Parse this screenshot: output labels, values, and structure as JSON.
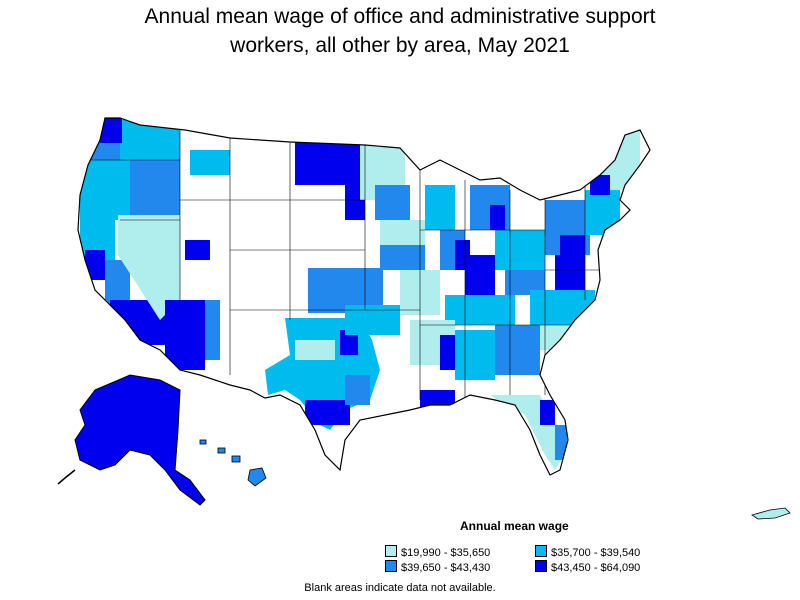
{
  "title_line1": "Annual mean wage of office and administrative support",
  "title_line2": "workers, all other by area, May 2021",
  "legend": {
    "title": "Annual mean wage",
    "items": [
      {
        "label": "$19,990 - $35,650",
        "color": "#b0eeee"
      },
      {
        "label": "$35,700 - $39,540",
        "color": "#00bbee"
      },
      {
        "label": "$39,650 - $43,430",
        "color": "#2288ee"
      },
      {
        "label": "$43,450 - $64,090",
        "color": "#0000ee"
      }
    ]
  },
  "footnote": "Blank areas indicate data not available.",
  "colors": {
    "blank": "#ffffff",
    "border": "#000000"
  }
}
